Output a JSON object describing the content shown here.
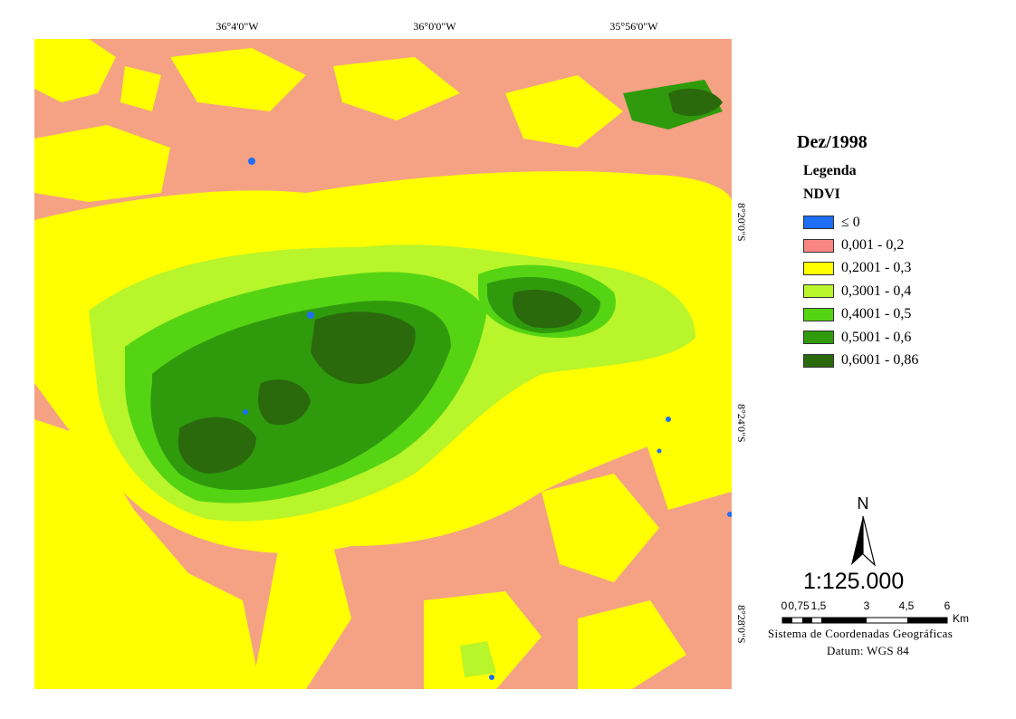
{
  "map": {
    "title": "Dez/1998",
    "legend_heading": "Legenda",
    "legend_field": "NDVI",
    "legend_items": [
      {
        "label": "≤ 0",
        "color": "#1f6ef5"
      },
      {
        "label": "0,001 - 0,2",
        "color": "#f88683"
      },
      {
        "label": "0,2001 - 0,3",
        "color": "#ffff00"
      },
      {
        "label": "0,3001 - 0,4",
        "color": "#b8f52a"
      },
      {
        "label": "0,4001 - 0,5",
        "color": "#55d414"
      },
      {
        "label": "0,5001 - 0,6",
        "color": "#2f9b0c"
      },
      {
        "label": "0,6001 - 0,86",
        "color": "#2a6a0c"
      }
    ],
    "graticule": {
      "longitude_labels": [
        "36°4'0\"W",
        "36°0'0\"W",
        "35°56'0\"W"
      ],
      "latitude_labels": [
        "8°20'0\"S",
        "8°24'0\"S",
        "8°28'0\"S"
      ]
    },
    "north_label": "N",
    "scale_text": "1:125.000",
    "scalebar": {
      "ticks": [
        "0",
        "0,75",
        "1,5",
        "3",
        "4,5",
        "6"
      ],
      "unit": "Km"
    },
    "coordinate_system": "Sistema de Coordenadas Geográficas",
    "datum": "Datum: WGS 84",
    "fill_colors": {
      "background": "#f4a283",
      "yellow": "#ffff00",
      "light_green": "#b8f52a",
      "mid_green": "#55d414",
      "green": "#2f9b0c",
      "dark_green": "#2a6a0c",
      "water": "#1f6ef5"
    }
  }
}
